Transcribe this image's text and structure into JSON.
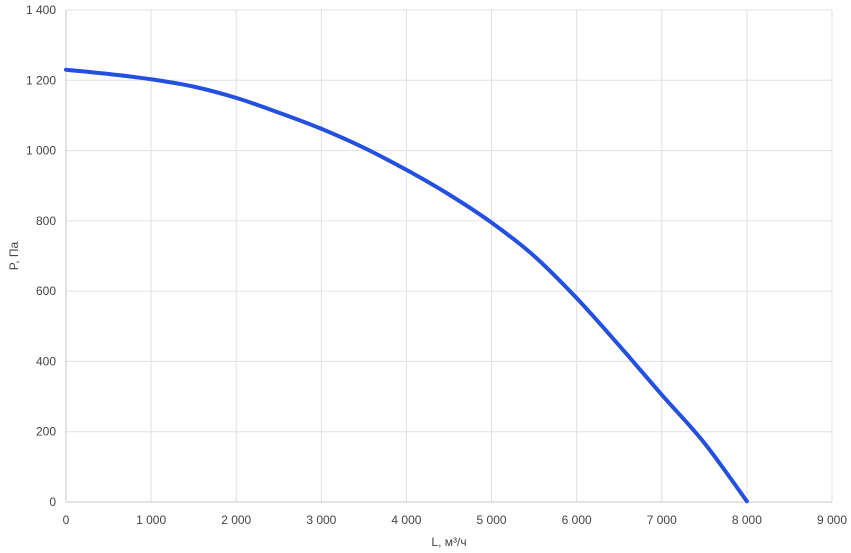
{
  "chart_data": {
    "type": "line",
    "title": "",
    "xlabel": "L, м³/ч",
    "ylabel": "P, Па",
    "xlim": [
      0,
      9000
    ],
    "ylim": [
      0,
      1400
    ],
    "grid": true,
    "x_ticks": [
      0,
      1000,
      2000,
      3000,
      4000,
      5000,
      6000,
      7000,
      8000,
      9000
    ],
    "x_tick_labels": [
      "0",
      "1 000",
      "2 000",
      "3 000",
      "4 000",
      "5 000",
      "6 000",
      "7 000",
      "8 000",
      "9 000"
    ],
    "y_ticks": [
      0,
      200,
      400,
      600,
      800,
      1000,
      1200,
      1400
    ],
    "y_tick_labels": [
      "0",
      "200",
      "400",
      "600",
      "800",
      "1 000",
      "1 200",
      "1 400"
    ],
    "series": [
      {
        "color": "#2450e0",
        "x": [
          0,
          500,
          1000,
          1500,
          2000,
          2500,
          3000,
          3500,
          4000,
          4500,
          5000,
          5500,
          6000,
          6500,
          7000,
          7500,
          8000
        ],
        "y": [
          1230,
          1218,
          1203,
          1182,
          1150,
          1108,
          1062,
          1008,
          945,
          875,
          795,
          700,
          580,
          445,
          305,
          168,
          2
        ]
      }
    ]
  }
}
